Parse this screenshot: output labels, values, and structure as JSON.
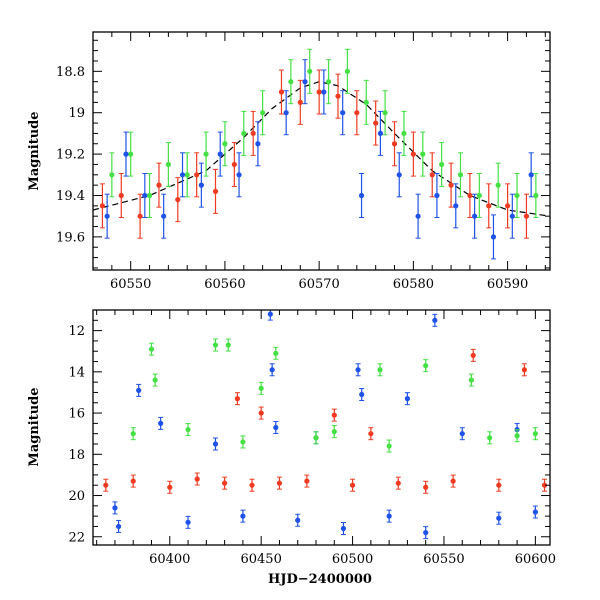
{
  "colors": {
    "blue": "#1f52e8",
    "green": "#44e044",
    "red": "#f03a22",
    "model": "#000000"
  },
  "chart_data": [
    {
      "type": "scatter",
      "title": "",
      "xlabel": "",
      "ylabel": "Magnitude",
      "xlim": [
        60546,
        60594.5
      ],
      "ylim": [
        19.76,
        18.61
      ],
      "y_inverted": true,
      "x_ticks": [
        60550,
        60560,
        60570,
        60580,
        60590
      ],
      "x_tick_labels": [
        "60550",
        "60560",
        "60570",
        "60580",
        "60590"
      ],
      "y_ticks": [
        18.8,
        19.0,
        19.2,
        19.4,
        19.6
      ],
      "y_tick_labels": [
        "18.8",
        "19",
        "19.2",
        "19.4",
        "19.6"
      ],
      "grid": false,
      "model_curve": {
        "style": "dashed",
        "x": [
          60546,
          60552,
          60558,
          60562,
          60565,
          60568,
          60570,
          60572,
          60575,
          60578,
          60582,
          60586,
          60590,
          60594.5
        ],
        "y": [
          19.47,
          19.4,
          19.28,
          19.12,
          18.98,
          18.88,
          18.85,
          18.87,
          18.96,
          19.1,
          19.28,
          19.4,
          19.47,
          19.5
        ]
      },
      "series": [
        {
          "color_key": "red",
          "x": [
            60547,
            60549,
            60551,
            60553,
            60555,
            60557,
            60559,
            60561,
            60563,
            60566,
            60568,
            60570,
            60572,
            60574,
            60576,
            60578,
            60580,
            60582,
            60584,
            60586,
            60588,
            60590,
            60592
          ],
          "y": [
            19.45,
            19.4,
            19.5,
            19.35,
            19.42,
            19.3,
            19.38,
            19.25,
            19.1,
            18.9,
            18.95,
            18.9,
            18.92,
            19.0,
            19.05,
            19.15,
            19.2,
            19.3,
            19.35,
            19.4,
            19.45,
            19.45,
            19.5
          ]
        },
        {
          "color_key": "green",
          "x": [
            60548,
            60550,
            60552,
            60554,
            60556,
            60558,
            60560,
            60562,
            60564,
            60567,
            60569,
            60571,
            60573,
            60575,
            60577,
            60579,
            60581,
            60583,
            60585,
            60587,
            60589,
            60591,
            60593
          ],
          "y": [
            19.3,
            19.2,
            19.4,
            19.25,
            19.3,
            19.2,
            19.15,
            19.1,
            19.0,
            18.85,
            18.8,
            18.85,
            18.8,
            18.95,
            19.0,
            19.1,
            19.2,
            19.25,
            19.3,
            19.4,
            19.35,
            19.4,
            19.4
          ]
        },
        {
          "color_key": "blue",
          "x": [
            60547.5,
            60549.5,
            60551.5,
            60553.5,
            60555.5,
            60557.5,
            60559.5,
            60561.5,
            60563.5,
            60566.5,
            60568.5,
            60570.5,
            60572.5,
            60574.5,
            60576.5,
            60578.5,
            60580.5,
            60582.5,
            60584.5,
            60586.5,
            60588.5,
            60590.5,
            60592.5
          ],
          "y": [
            19.5,
            19.2,
            19.4,
            19.5,
            19.3,
            19.35,
            19.2,
            19.3,
            19.15,
            19.0,
            18.85,
            18.9,
            19.0,
            19.4,
            19.1,
            19.3,
            19.5,
            19.4,
            19.45,
            19.5,
            19.6,
            19.5,
            19.3
          ]
        }
      ]
    },
    {
      "type": "scatter",
      "title": "",
      "xlabel": "HJD−2400000",
      "ylabel": "Magnitude",
      "xlim": [
        60358,
        60608
      ],
      "ylim": [
        22.4,
        11.0
      ],
      "y_inverted": true,
      "x_ticks": [
        60400,
        60450,
        60500,
        60550,
        60600
      ],
      "x_tick_labels": [
        "60400",
        "60450",
        "60500",
        "60550",
        "60600"
      ],
      "y_ticks": [
        12,
        14,
        16,
        18,
        20,
        22
      ],
      "y_tick_labels": [
        "12",
        "14",
        "16",
        "18",
        "20",
        "22"
      ],
      "grid": false,
      "series": [
        {
          "color_key": "blue",
          "x": [
            60370,
            60372,
            60383,
            60395,
            60410,
            60425,
            60440,
            60455,
            60456,
            60458,
            60470,
            60480,
            60495,
            60503,
            60505,
            60520,
            60530,
            60540,
            60545,
            60560,
            60580,
            60590,
            60600
          ],
          "y": [
            20.6,
            21.5,
            14.9,
            16.5,
            21.3,
            17.5,
            21.0,
            11.2,
            13.9,
            16.7,
            21.2,
            17.2,
            21.6,
            13.9,
            15.1,
            21.0,
            15.3,
            21.8,
            11.5,
            17.0,
            21.1,
            16.8,
            20.8
          ]
        },
        {
          "color_key": "green",
          "x": [
            60380,
            60390,
            60392,
            60410,
            60425,
            60432,
            60440,
            60450,
            60458,
            60480,
            60490,
            60515,
            60520,
            60540,
            60565,
            60575,
            60590,
            60600
          ],
          "y": [
            17.0,
            12.9,
            14.4,
            16.8,
            12.7,
            12.7,
            17.4,
            14.8,
            13.1,
            17.2,
            16.9,
            13.9,
            17.6,
            13.7,
            14.4,
            17.2,
            17.1,
            17.0
          ]
        },
        {
          "color_key": "red",
          "x": [
            60365,
            60380,
            60400,
            60415,
            60430,
            60437,
            60445,
            60450,
            60460,
            60475,
            60490,
            60500,
            60510,
            60525,
            60540,
            60555,
            60566,
            60580,
            60594,
            60605
          ],
          "y": [
            19.5,
            19.3,
            19.6,
            19.2,
            19.4,
            15.3,
            19.5,
            16.0,
            19.4,
            19.3,
            16.1,
            19.5,
            17.0,
            19.4,
            19.6,
            19.3,
            13.2,
            19.5,
            13.9,
            19.5
          ]
        }
      ]
    }
  ]
}
